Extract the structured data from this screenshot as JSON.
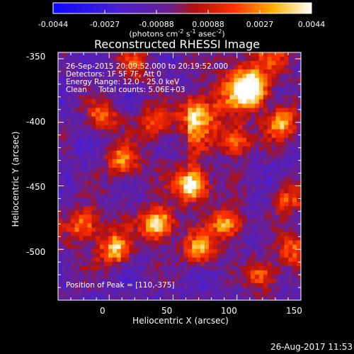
{
  "colorbar": {
    "ticks": [
      "-0.0044",
      "-0.0027",
      "-0.00088",
      "0.00088",
      "0.0027",
      "0.0044"
    ],
    "units_parts": [
      "(photons cm",
      "-2",
      " s",
      "-1",
      " asec",
      "-2",
      ")"
    ]
  },
  "chart_data": {
    "type": "heatmap",
    "title": "Reconstructed RHESSI Image",
    "xlabel": "Heliocentric X (arcsec)",
    "ylabel": "Heliocentric Y (arcsec)",
    "xlim": [
      -40,
      150
    ],
    "ylim": [
      -540,
      -345
    ],
    "xticks": [
      0,
      50,
      100,
      150
    ],
    "yticks": [
      -350,
      -400,
      -450,
      -500
    ],
    "color_range": [
      -0.0044,
      0.0044
    ],
    "peak": {
      "x": 110,
      "y": -375
    },
    "bright_sources": [
      {
        "x": 65,
        "y": -450,
        "level": 1.0
      },
      {
        "x": 38,
        "y": -480,
        "level": 0.95
      },
      {
        "x": 110,
        "y": -375,
        "level": 1.0
      },
      {
        "x": 92,
        "y": -480,
        "level": 0.75
      },
      {
        "x": 70,
        "y": -500,
        "level": 0.7
      },
      {
        "x": 5,
        "y": -500,
        "level": 0.75
      },
      {
        "x": 65,
        "y": -395,
        "level": 0.55
      },
      {
        "x": 100,
        "y": -415,
        "level": 0.6
      },
      {
        "x": 135,
        "y": -400,
        "level": 0.7
      },
      {
        "x": 10,
        "y": -430,
        "level": 0.6
      },
      {
        "x": -5,
        "y": -395,
        "level": 0.55
      },
      {
        "x": -20,
        "y": -480,
        "level": 0.6
      },
      {
        "x": 145,
        "y": -500,
        "level": 0.55
      },
      {
        "x": 120,
        "y": -520,
        "level": 0.6
      },
      {
        "x": 140,
        "y": -460,
        "level": 0.5
      },
      {
        "x": 35,
        "y": -400,
        "level": 0.5
      },
      {
        "x": 20,
        "y": -355,
        "level": 0.45
      }
    ]
  },
  "annotations": {
    "line1": "26-Sep-2015 20:09:52.000 to 20:19:52.000",
    "line2": "Detectors: 1F 5F 7F, Att 0",
    "line3": "Energy Range: 12.0 - 25.0 keV",
    "line4": "Clean     Total counts: 5.06E+03",
    "peak_label": "Position of Peak = [110,-375]"
  },
  "timestamp": "26-Aug-2017 11:53"
}
